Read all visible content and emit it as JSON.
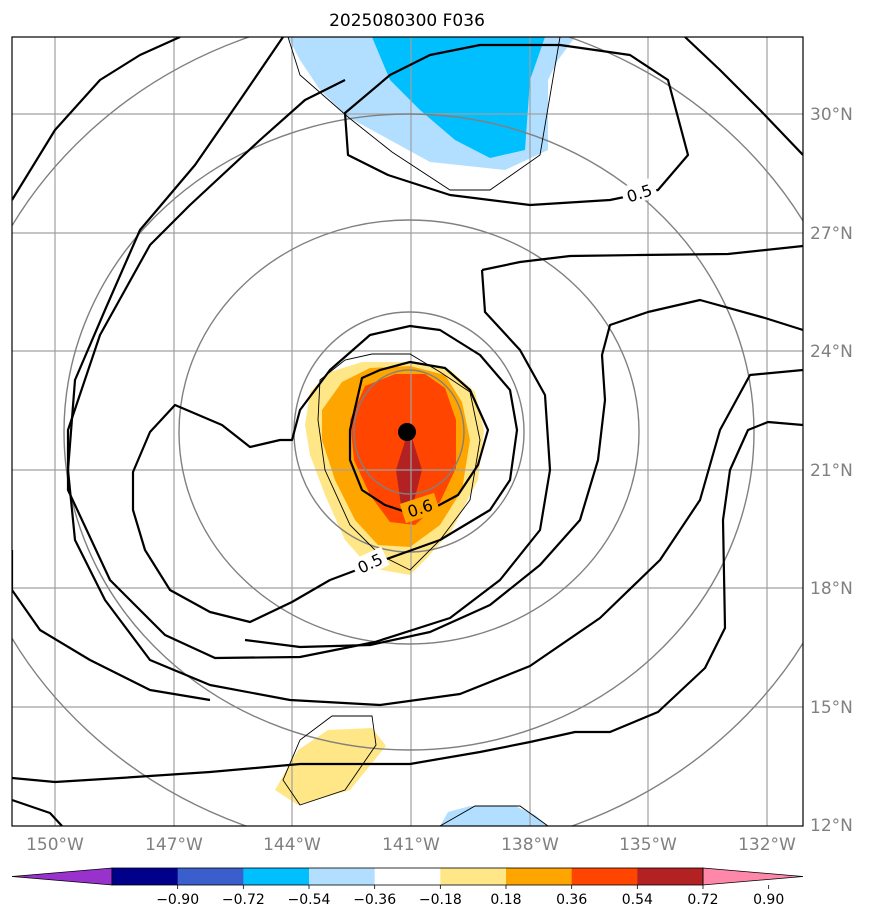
{
  "title": "2025080300 F036",
  "chart_data": {
    "type": "contour-map",
    "title": "2025080300 F036",
    "lon_ticks": [
      "150°W",
      "147°W",
      "144°W",
      "141°W",
      "138°W",
      "135°W",
      "132°W"
    ],
    "lat_ticks": [
      "30°N",
      "27°N",
      "24°N",
      "21°N",
      "18°N",
      "15°N",
      "12°N"
    ],
    "lon_range": [
      -151.1,
      -131.1
    ],
    "lat_range": [
      12,
      32
    ],
    "center": {
      "lon": -141.0,
      "lat": 22.0
    },
    "contour_labels": [
      "0.5",
      "0.6",
      "0.5"
    ],
    "colorbar": {
      "levels": [
        -0.9,
        -0.72,
        -0.54,
        -0.36,
        -0.18,
        0.18,
        0.36,
        0.54,
        0.72,
        0.9
      ],
      "tick_labels": [
        "−0.90",
        "−0.72",
        "−0.54",
        "−0.36",
        "−0.18",
        "0.18",
        "0.36",
        "0.54",
        "0.72",
        "0.90"
      ],
      "colors": [
        "#9932cc",
        "#00008b",
        "#3a5fcd",
        "#00bfff",
        "#b2dfff",
        "#ffffff",
        "#ffe787",
        "#ffa500",
        "#ff4500",
        "#b22222",
        "#ff88aa"
      ],
      "extend": "both"
    }
  }
}
